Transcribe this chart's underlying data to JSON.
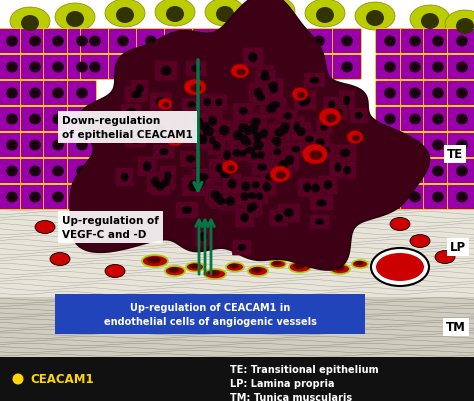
{
  "bg_color": "#ffffff",
  "legend_bg": "#111111",
  "legend_dot_color": "#FFD700",
  "legend_label": "CEACAM1",
  "legend_items_right": [
    "TE: Transitional epithelium",
    "LP: Lamina propria",
    "TM: Tunica muscularis"
  ],
  "label_TE": "TE",
  "label_LP": "LP",
  "label_TM": "TM",
  "text_down_reg": "Down-regulation\nof epithelial CEACAM1",
  "text_up_reg_vegf": "Up-regulation of\nVEGF-C and -D",
  "text_up_reg_ceacam": "Up-regulation of CEACAM1 in\nendothelial cells of angiogenic vessels",
  "box_up_reg_color": "#2244BB",
  "arrow_color": "#007744",
  "purple_cell_color": "#9900AA",
  "dark_tumor_color": "#3D0015",
  "red_cell_color": "#CC0000",
  "yellow_green_color": "#BBCC00",
  "gray_tm_color": "#C8C8C8",
  "lp_bg_color": "#E8E4DC"
}
